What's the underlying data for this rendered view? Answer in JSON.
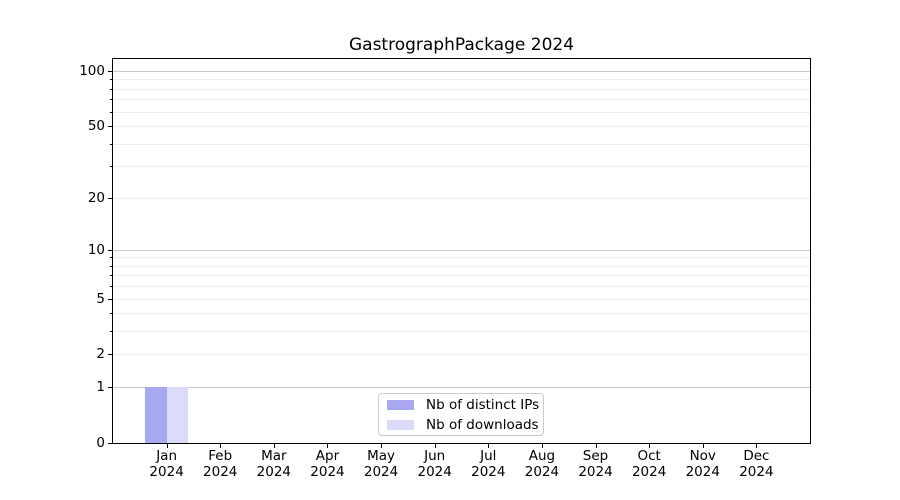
{
  "chart_data": {
    "type": "bar",
    "title": "GastrographPackage 2024",
    "categories": [
      "Jan",
      "Feb",
      "Mar",
      "Apr",
      "May",
      "Jun",
      "Jul",
      "Aug",
      "Sep",
      "Oct",
      "Nov",
      "Dec"
    ],
    "x_year_label": "2024",
    "series": [
      {
        "name": "Nb of distinct IPs",
        "color": "#a8a8f0",
        "values": [
          1,
          0,
          0,
          0,
          0,
          0,
          0,
          0,
          0,
          0,
          0,
          0
        ]
      },
      {
        "name": "Nb of downloads",
        "color": "#dcdcf8",
        "values": [
          1,
          0,
          0,
          0,
          0,
          0,
          0,
          0,
          0,
          0,
          0,
          0
        ]
      }
    ],
    "yscale": "log1p",
    "ylim_top": 116,
    "yticks": [
      {
        "v": 0,
        "label": "0"
      },
      {
        "v": 1,
        "label": "1"
      },
      {
        "v": 2,
        "label": "2"
      },
      {
        "v": 5,
        "label": "5"
      },
      {
        "v": 10,
        "label": "10"
      },
      {
        "v": 20,
        "label": "20"
      },
      {
        "v": 50,
        "label": "50"
      },
      {
        "v": 100,
        "label": "100"
      }
    ],
    "y_major_values": [
      1,
      10,
      100
    ],
    "y_minor_gridlines": [
      3,
      4,
      6,
      7,
      8,
      9,
      30,
      40,
      60,
      70,
      80,
      90
    ],
    "legend_position": "lower center",
    "grid": "horizontal"
  },
  "colors": {
    "major_grid": "#c9c9c9",
    "minor_grid": "#ececec",
    "axis": "#000000",
    "background": "#ffffff"
  }
}
